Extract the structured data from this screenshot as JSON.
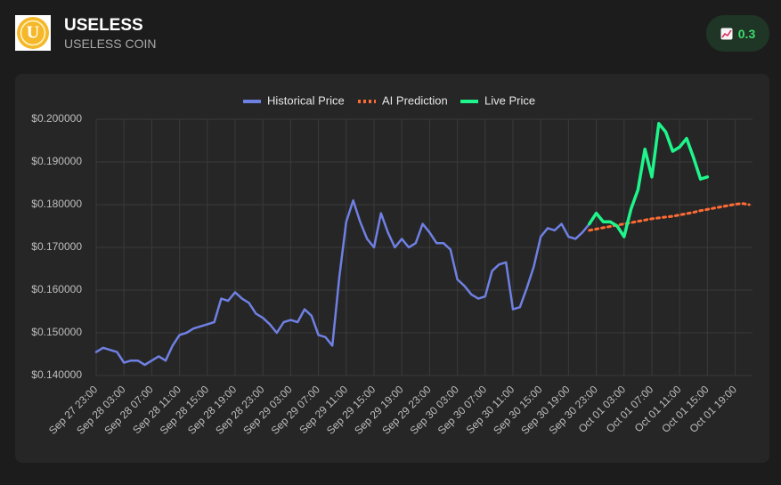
{
  "header": {
    "logo": "U",
    "title": "USELESS",
    "subtitle": "USELESS COIN",
    "badge": "0.3"
  },
  "chart_data": {
    "type": "line",
    "categories": [
      "Sep 27 23:00",
      null,
      null,
      null,
      "Sep 28 03:00",
      null,
      null,
      null,
      "Sep 28 07:00",
      null,
      null,
      null,
      "Sep 28 11:00",
      null,
      null,
      null,
      "Sep 28 15:00",
      null,
      null,
      null,
      "Sep 28 19:00",
      null,
      null,
      null,
      "Sep 28 23:00",
      null,
      null,
      null,
      "Sep 29 03:00",
      null,
      null,
      null,
      "Sep 29 07:00",
      null,
      null,
      null,
      "Sep 29 11:00",
      null,
      null,
      null,
      "Sep 29 15:00",
      null,
      null,
      null,
      "Sep 29 19:00",
      null,
      null,
      null,
      "Sep 29 23:00",
      null,
      null,
      null,
      "Sep 30 03:00",
      null,
      null,
      null,
      "Sep 30 07:00",
      null,
      null,
      null,
      "Sep 30 11:00",
      null,
      null,
      null,
      "Sep 30 15:00",
      null,
      null,
      null,
      "Sep 30 19:00",
      null,
      null,
      null,
      "Sep 30 23:00",
      null,
      null,
      null,
      "Oct 01 03:00",
      null,
      null,
      null,
      "Oct 01 07:00",
      null,
      null,
      null,
      "Oct 01 11:00",
      null,
      null,
      null,
      "Oct 01 15:00",
      null,
      null,
      null,
      "Oct 01 19:00",
      null,
      null
    ],
    "series": [
      {
        "name": "Historical Price",
        "color": "#6f80e3",
        "dashed": false,
        "values": [
          0.1455,
          0.1465,
          0.146,
          0.1455,
          0.143,
          0.1435,
          0.1435,
          0.1425,
          0.1435,
          0.1445,
          0.1435,
          0.147,
          0.1495,
          0.15,
          0.151,
          0.1515,
          0.152,
          0.1525,
          0.158,
          0.1575,
          0.1595,
          0.158,
          0.157,
          0.1545,
          0.1535,
          0.152,
          0.15,
          0.1525,
          0.153,
          0.1525,
          0.1555,
          0.154,
          0.1495,
          0.149,
          0.147,
          0.163,
          0.176,
          0.181,
          0.176,
          0.172,
          0.17,
          0.178,
          0.1735,
          0.17,
          0.172,
          0.17,
          0.171,
          0.1755,
          0.1735,
          0.171,
          0.171,
          0.1695,
          0.1625,
          0.161,
          0.159,
          0.158,
          0.1585,
          0.1645,
          0.166,
          0.1665,
          0.1555,
          0.156,
          0.1605,
          0.1655,
          0.1725,
          0.1745,
          0.174,
          0.1755,
          0.1725,
          0.172,
          0.1735,
          0.1755,
          null,
          null,
          null,
          null,
          null,
          null,
          null,
          null,
          null,
          null,
          null,
          null,
          null,
          null,
          null,
          null,
          null,
          null,
          null,
          null,
          null,
          null,
          null
        ]
      },
      {
        "name": "AI Prediction",
        "color": "#ff6b35",
        "dashed": true,
        "values": [
          null,
          null,
          null,
          null,
          null,
          null,
          null,
          null,
          null,
          null,
          null,
          null,
          null,
          null,
          null,
          null,
          null,
          null,
          null,
          null,
          null,
          null,
          null,
          null,
          null,
          null,
          null,
          null,
          null,
          null,
          null,
          null,
          null,
          null,
          null,
          null,
          null,
          null,
          null,
          null,
          null,
          null,
          null,
          null,
          null,
          null,
          null,
          null,
          null,
          null,
          null,
          null,
          null,
          null,
          null,
          null,
          null,
          null,
          null,
          null,
          null,
          null,
          null,
          null,
          null,
          null,
          null,
          null,
          null,
          null,
          null,
          0.174,
          0.1743,
          0.1746,
          0.1749,
          0.1752,
          0.1755,
          0.1758,
          0.1761,
          0.1764,
          0.1767,
          0.1769,
          0.1771,
          0.1773,
          0.1776,
          0.1779,
          0.1782,
          0.1786,
          0.1789,
          0.1792,
          0.1795,
          0.1798,
          0.1801,
          0.1803,
          0.18
        ]
      },
      {
        "name": "Live Price",
        "color": "#1ef58a",
        "dashed": false,
        "values": [
          null,
          null,
          null,
          null,
          null,
          null,
          null,
          null,
          null,
          null,
          null,
          null,
          null,
          null,
          null,
          null,
          null,
          null,
          null,
          null,
          null,
          null,
          null,
          null,
          null,
          null,
          null,
          null,
          null,
          null,
          null,
          null,
          null,
          null,
          null,
          null,
          null,
          null,
          null,
          null,
          null,
          null,
          null,
          null,
          null,
          null,
          null,
          null,
          null,
          null,
          null,
          null,
          null,
          null,
          null,
          null,
          null,
          null,
          null,
          null,
          null,
          null,
          null,
          null,
          null,
          null,
          null,
          null,
          null,
          null,
          null,
          0.1755,
          0.178,
          0.176,
          0.176,
          0.175,
          0.1725,
          0.179,
          0.1835,
          0.193,
          0.1865,
          0.199,
          0.197,
          0.1925,
          0.1935,
          0.1955,
          0.191,
          0.186,
          0.1865,
          null,
          null,
          null,
          null,
          null,
          null
        ]
      }
    ],
    "ylim": [
      0.14,
      0.2
    ],
    "yticks": [
      {
        "value": 0.14,
        "label": "$0.140000"
      },
      {
        "value": 0.15,
        "label": "$0.150000"
      },
      {
        "value": 0.16,
        "label": "$0.160000"
      },
      {
        "value": 0.17,
        "label": "$0.170000"
      },
      {
        "value": 0.18,
        "label": "$0.180000"
      },
      {
        "value": 0.19,
        "label": "$0.190000"
      },
      {
        "value": 0.2,
        "label": "$0.200000"
      }
    ],
    "grid": true,
    "legend": "top"
  }
}
